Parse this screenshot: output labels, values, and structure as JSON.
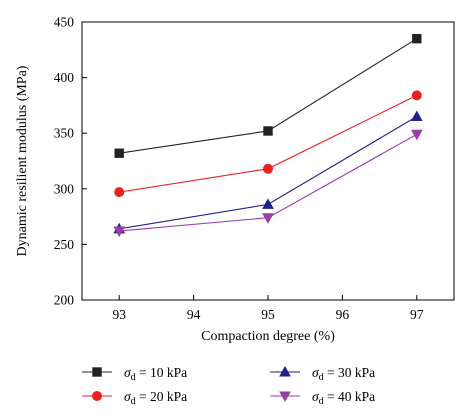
{
  "chart_data": {
    "type": "line",
    "x": [
      93,
      95,
      97
    ],
    "xlabel": "Compaction degree (%)",
    "ylabel": "Dynamic resilient modulus (MPa)",
    "xlim": [
      92.5,
      97.5
    ],
    "ylim": [
      200,
      450
    ],
    "xticks": [
      "93",
      "94",
      "95",
      "96",
      "97"
    ],
    "yticks": [
      "200",
      "250",
      "300",
      "350",
      "400",
      "450"
    ],
    "grid": false,
    "legend_position": "bottom",
    "series": [
      {
        "name": "σd = 10 kPa",
        "symbol": "σ",
        "subscript": "d",
        "value_text": " = 10 kPa",
        "values": [
          332,
          352,
          435
        ],
        "color": "#222222",
        "marker": "square"
      },
      {
        "name": "σd = 20 kPa",
        "symbol": "σ",
        "subscript": "d",
        "value_text": " = 20 kPa",
        "values": [
          297,
          318,
          384
        ],
        "color": "#e8231f",
        "marker": "circle"
      },
      {
        "name": "σd = 30 kPa",
        "symbol": "σ",
        "subscript": "d",
        "value_text": " = 30 kPa",
        "values": [
          264,
          286,
          365
        ],
        "color": "#1f1f8f",
        "marker": "triangle-up"
      },
      {
        "name": "σd = 40 kPa",
        "symbol": "σ",
        "subscript": "d",
        "value_text": " = 40 kPa",
        "values": [
          262,
          274,
          349
        ],
        "color": "#9b3ca8",
        "marker": "triangle-down"
      }
    ]
  }
}
